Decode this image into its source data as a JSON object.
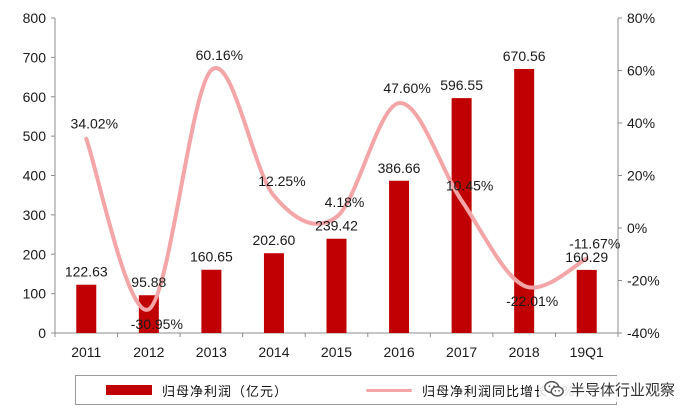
{
  "chart_data": {
    "type": "bar",
    "categories": [
      "2011",
      "2012",
      "2013",
      "2014",
      "2015",
      "2016",
      "2017",
      "2018",
      "19Q1"
    ],
    "series": [
      {
        "name": "归母净利润（亿元）",
        "type": "bar",
        "axis": "left",
        "values": [
          122.63,
          95.88,
          160.65,
          202.6,
          239.42,
          386.66,
          596.55,
          670.56,
          160.29
        ],
        "labels": [
          "122.63",
          "95.88",
          "160.65",
          "202.60",
          "239.42",
          "386.66",
          "596.55",
          "670.56",
          "160.29"
        ]
      },
      {
        "name": "归母净利润同比增长（%）",
        "type": "line",
        "axis": "right",
        "values": [
          34.02,
          -30.95,
          60.16,
          12.25,
          4.18,
          47.6,
          10.45,
          -22.01,
          -11.67
        ],
        "labels": [
          "34.02%",
          "-30.95%",
          "60.16%",
          "12.25%",
          "4.18%",
          "47.60%",
          "10.45%",
          "-22.01%",
          "-11.67%"
        ]
      }
    ],
    "ylim_left": [
      0,
      800
    ],
    "yticks_left": [
      "0",
      "100",
      "200",
      "300",
      "400",
      "500",
      "600",
      "700",
      "800"
    ],
    "ylim_right": [
      -40,
      80
    ],
    "yticks_right": [
      "-40%",
      "-20%",
      "0%",
      "20%",
      "40%",
      "60%",
      "80%"
    ],
    "grid": false,
    "legend_position": "bottom",
    "colors": {
      "bar": "#c00000",
      "line": "#f4a5a8",
      "text": "#1a1a1a",
      "axis": "#8c8c8c"
    }
  },
  "watermark": {
    "text": "半导体行业观察",
    "icon": "wechat-icon"
  }
}
